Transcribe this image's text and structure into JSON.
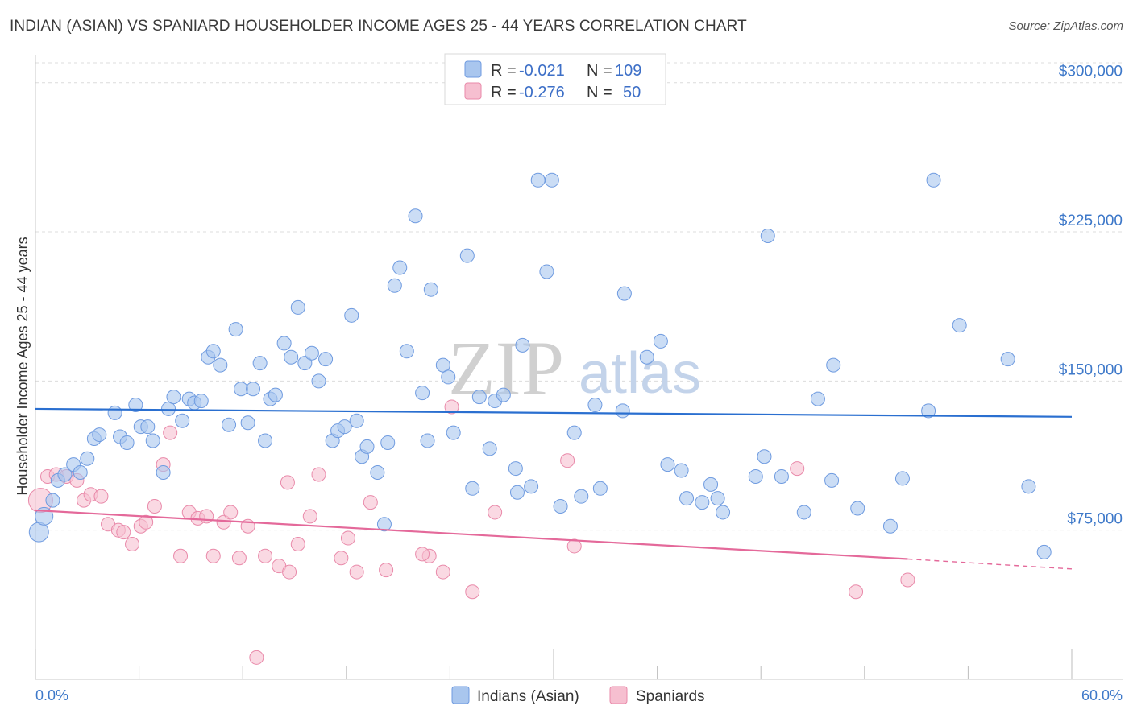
{
  "header": {
    "title": "INDIAN (ASIAN) VS SPANIARD HOUSEHOLDER INCOME AGES 25 - 44 YEARS CORRELATION CHART",
    "source": "Source: ZipAtlas.com"
  },
  "watermark": {
    "zip": "ZIP",
    "atlas": "atlas"
  },
  "legend": {
    "rows": [
      {
        "r_label": "R =",
        "r_value": "-0.021",
        "n_label": "N =",
        "n_value": "109"
      },
      {
        "r_label": "R =",
        "r_value": "-0.276",
        "n_label": "N =",
        "n_value": "50"
      }
    ]
  },
  "bottom_legend": {
    "series1": "Indians (Asian)",
    "series2": "Spaniards"
  },
  "colors": {
    "blue_fill": "#a9c6ee",
    "blue_stroke": "#6f9be0",
    "blue_line": "#2a6fd0",
    "pink_fill": "#f6bfd0",
    "pink_stroke": "#e98aaa",
    "pink_line": "#e4699a",
    "axis_text": "#3d78c9",
    "grid": "#dcdcdc"
  },
  "chart_data": {
    "type": "scatter",
    "title": "INDIAN (ASIAN) VS SPANIARD HOUSEHOLDER INCOME AGES 25 - 44 YEARS CORRELATION CHART",
    "xlabel": "",
    "ylabel": "Householder Income Ages 25 - 44 years",
    "xlim": [
      0,
      60
    ],
    "ylim": [
      0,
      310000
    ],
    "x_tick_labels": [
      "0.0%",
      "60.0%"
    ],
    "y_ticks": [
      75000,
      150000,
      225000,
      300000
    ],
    "y_tick_labels": [
      "$75,000",
      "$150,000",
      "$225,000",
      "$300,000"
    ],
    "grid": true,
    "legend_position": "top-center",
    "series": [
      {
        "name": "Indians (Asian)",
        "r": -0.021,
        "n": 109,
        "trend": {
          "x": [
            0,
            60
          ],
          "y": [
            136000,
            132000
          ]
        },
        "points": [
          [
            0.2,
            74000
          ],
          [
            0.5,
            82000
          ],
          [
            1.0,
            90000
          ],
          [
            1.3,
            100000
          ],
          [
            1.7,
            103000
          ],
          [
            2.2,
            108000
          ],
          [
            2.6,
            104000
          ],
          [
            3.0,
            111000
          ],
          [
            3.4,
            121000
          ],
          [
            3.7,
            123000
          ],
          [
            4.6,
            134000
          ],
          [
            4.9,
            122000
          ],
          [
            5.3,
            119000
          ],
          [
            5.8,
            138000
          ],
          [
            6.1,
            127000
          ],
          [
            6.5,
            127000
          ],
          [
            6.8,
            120000
          ],
          [
            7.4,
            104000
          ],
          [
            7.7,
            136000
          ],
          [
            8.0,
            142000
          ],
          [
            8.5,
            130000
          ],
          [
            8.9,
            141000
          ],
          [
            9.2,
            139000
          ],
          [
            9.6,
            140000
          ],
          [
            10.0,
            162000
          ],
          [
            10.3,
            165000
          ],
          [
            10.7,
            158000
          ],
          [
            11.2,
            128000
          ],
          [
            11.6,
            176000
          ],
          [
            11.9,
            146000
          ],
          [
            12.3,
            129000
          ],
          [
            12.6,
            146000
          ],
          [
            13.0,
            159000
          ],
          [
            13.3,
            120000
          ],
          [
            13.6,
            141000
          ],
          [
            13.9,
            143000
          ],
          [
            14.4,
            169000
          ],
          [
            14.8,
            162000
          ],
          [
            15.2,
            187000
          ],
          [
            15.6,
            159000
          ],
          [
            16.0,
            164000
          ],
          [
            16.4,
            150000
          ],
          [
            16.8,
            161000
          ],
          [
            17.2,
            120000
          ],
          [
            17.5,
            125000
          ],
          [
            17.9,
            127000
          ],
          [
            18.3,
            183000
          ],
          [
            18.6,
            130000
          ],
          [
            18.9,
            112000
          ],
          [
            19.2,
            117000
          ],
          [
            19.8,
            104000
          ],
          [
            20.2,
            78000
          ],
          [
            20.4,
            119000
          ],
          [
            20.8,
            198000
          ],
          [
            21.1,
            207000
          ],
          [
            21.5,
            165000
          ],
          [
            22.0,
            233000
          ],
          [
            22.4,
            144000
          ],
          [
            22.7,
            120000
          ],
          [
            22.9,
            196000
          ],
          [
            23.6,
            158000
          ],
          [
            23.9,
            152000
          ],
          [
            24.2,
            124000
          ],
          [
            25.0,
            213000
          ],
          [
            25.3,
            96000
          ],
          [
            25.7,
            142000
          ],
          [
            26.3,
            116000
          ],
          [
            26.6,
            140000
          ],
          [
            27.1,
            143000
          ],
          [
            27.8,
            106000
          ],
          [
            27.9,
            94000
          ],
          [
            28.2,
            168000
          ],
          [
            28.7,
            97000
          ],
          [
            29.1,
            251000
          ],
          [
            29.9,
            251000
          ],
          [
            29.6,
            205000
          ],
          [
            30.4,
            87000
          ],
          [
            31.2,
            124000
          ],
          [
            31.6,
            92000
          ],
          [
            32.4,
            138000
          ],
          [
            32.7,
            96000
          ],
          [
            34.0,
            135000
          ],
          [
            34.1,
            194000
          ],
          [
            35.4,
            162000
          ],
          [
            36.2,
            170000
          ],
          [
            36.6,
            108000
          ],
          [
            37.4,
            105000
          ],
          [
            37.7,
            91000
          ],
          [
            38.6,
            89000
          ],
          [
            39.1,
            98000
          ],
          [
            39.5,
            91000
          ],
          [
            39.8,
            84000
          ],
          [
            41.7,
            102000
          ],
          [
            42.2,
            112000
          ],
          [
            42.4,
            223000
          ],
          [
            43.2,
            102000
          ],
          [
            44.5,
            84000
          ],
          [
            45.3,
            141000
          ],
          [
            46.1,
            100000
          ],
          [
            46.2,
            158000
          ],
          [
            47.6,
            86000
          ],
          [
            49.5,
            77000
          ],
          [
            50.2,
            101000
          ],
          [
            51.7,
            135000
          ],
          [
            52.0,
            251000
          ],
          [
            53.5,
            178000
          ],
          [
            56.3,
            161000
          ],
          [
            57.5,
            97000
          ],
          [
            58.4,
            64000
          ]
        ]
      },
      {
        "name": "Spaniards",
        "r": -0.276,
        "n": 50,
        "trend": {
          "x": [
            0,
            50.5,
            60
          ],
          "y": [
            85000,
            60500,
            55500
          ],
          "solid_until": 50.5
        },
        "points": [
          [
            0.3,
            90000
          ],
          [
            0.7,
            102000
          ],
          [
            1.2,
            103000
          ],
          [
            1.8,
            102000
          ],
          [
            2.4,
            100000
          ],
          [
            2.8,
            90000
          ],
          [
            3.2,
            93000
          ],
          [
            3.8,
            92000
          ],
          [
            4.2,
            78000
          ],
          [
            4.8,
            75000
          ],
          [
            5.1,
            74000
          ],
          [
            5.6,
            68000
          ],
          [
            6.1,
            77000
          ],
          [
            6.4,
            79000
          ],
          [
            6.9,
            87000
          ],
          [
            7.4,
            108000
          ],
          [
            7.8,
            124000
          ],
          [
            8.4,
            62000
          ],
          [
            8.9,
            84000
          ],
          [
            9.4,
            81000
          ],
          [
            9.9,
            82000
          ],
          [
            10.3,
            62000
          ],
          [
            10.9,
            79000
          ],
          [
            11.3,
            84000
          ],
          [
            11.8,
            61000
          ],
          [
            12.3,
            77000
          ],
          [
            12.8,
            11000
          ],
          [
            13.3,
            62000
          ],
          [
            14.1,
            57000
          ],
          [
            14.6,
            99000
          ],
          [
            14.7,
            54000
          ],
          [
            15.2,
            68000
          ],
          [
            15.9,
            82000
          ],
          [
            16.4,
            103000
          ],
          [
            17.7,
            61000
          ],
          [
            18.1,
            71000
          ],
          [
            18.6,
            54000
          ],
          [
            19.4,
            89000
          ],
          [
            20.3,
            55000
          ],
          [
            22.8,
            62000
          ],
          [
            22.4,
            63000
          ],
          [
            23.6,
            54000
          ],
          [
            24.1,
            137000
          ],
          [
            25.3,
            44000
          ],
          [
            26.6,
            84000
          ],
          [
            30.8,
            110000
          ],
          [
            31.2,
            67000
          ],
          [
            44.1,
            106000
          ],
          [
            47.5,
            44000
          ],
          [
            50.5,
            50000
          ]
        ]
      }
    ]
  }
}
